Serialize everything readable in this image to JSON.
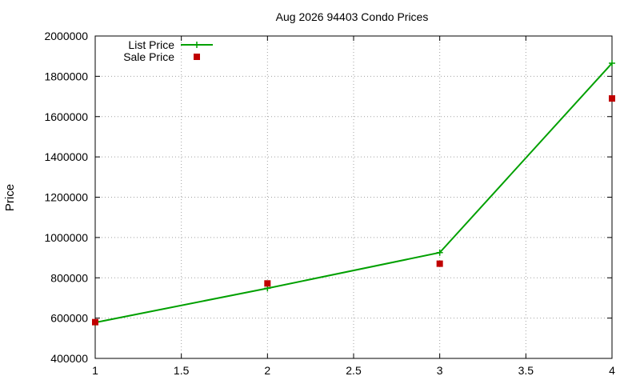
{
  "chart_data": {
    "type": "line",
    "title": "Aug 2026 94403 Condo Prices",
    "xlabel": "",
    "ylabel": "Price",
    "x": [
      1,
      2,
      3,
      4
    ],
    "xlim": [
      1,
      4
    ],
    "ylim": [
      400000,
      2000000
    ],
    "xticks": [
      "1",
      "1.5",
      "2",
      "2.5",
      "3",
      "3.5",
      "4"
    ],
    "yticks": [
      "400000",
      "600000",
      "800000",
      "1000000",
      "1200000",
      "1400000",
      "1600000",
      "1800000",
      "2000000"
    ],
    "grid": true,
    "legend_position": "top-left",
    "series": [
      {
        "name": "List Price",
        "style": "line-with-plus-markers",
        "color": "#00a000",
        "values": [
          578000,
          748000,
          925000,
          1865000
        ]
      },
      {
        "name": "Sale Price",
        "style": "square-markers",
        "color": "#c00000",
        "values": [
          580000,
          772000,
          870000,
          1690000
        ]
      }
    ]
  }
}
